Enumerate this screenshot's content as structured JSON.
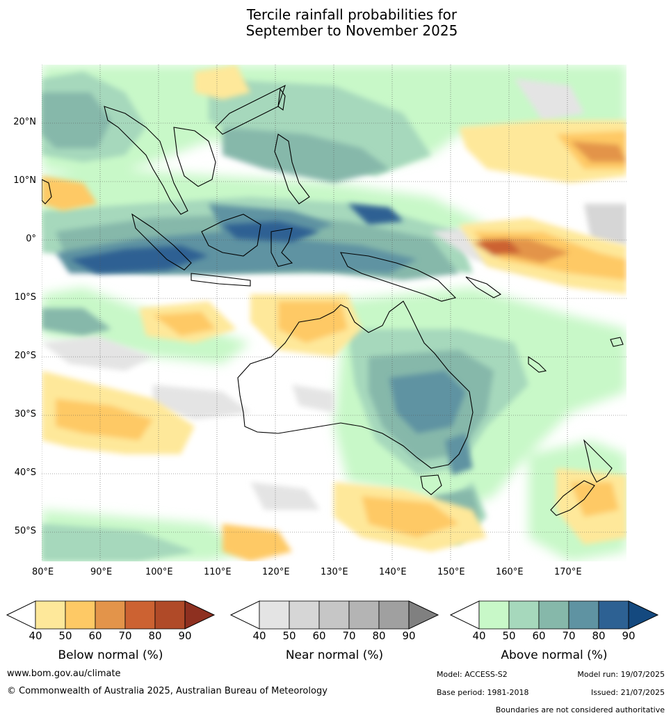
{
  "title_line1": "Tercile rainfall probabilities for",
  "title_line2": "September to November 2025",
  "map": {
    "lon_labels": [
      "80°E",
      "90°E",
      "100°E",
      "110°E",
      "120°E",
      "130°E",
      "140°E",
      "150°E",
      "160°E",
      "170°E"
    ],
    "lat_labels": [
      "20°N",
      "10°N",
      "0°",
      "10°S",
      "20°S",
      "30°S",
      "40°S",
      "50°S"
    ],
    "regions": {
      "north_pacific_below": "Below normal (%)",
      "equatorial_pacific_below": "Below normal (%)",
      "maritime_continent_above": "Above normal (%)",
      "australia_above": "Above normal (%)",
      "nw_australia_below": "Below normal (%)"
    }
  },
  "colorbars": [
    {
      "title": "Below normal (%)",
      "ticks": [
        "40",
        "50",
        "60",
        "70",
        "80",
        "90"
      ],
      "colors": [
        "#fee89a",
        "#fec965",
        "#e3944a",
        "#cc6232",
        "#b04a28",
        "#8e3020"
      ]
    },
    {
      "title": "Near normal (%)",
      "ticks": [
        "40",
        "50",
        "60",
        "70",
        "80",
        "90"
      ],
      "colors": [
        "#e4e4e4",
        "#d6d6d6",
        "#c6c6c6",
        "#b4b4b4",
        "#a0a0a0",
        "#808080"
      ]
    },
    {
      "title": "Above normal (%)",
      "ticks": [
        "40",
        "50",
        "60",
        "70",
        "80",
        "90"
      ],
      "colors": [
        "#c8f8c8",
        "#a6d8bc",
        "#86b8aa",
        "#5f93a2",
        "#2d6193",
        "#14497f"
      ]
    }
  ],
  "footer": {
    "website": "www.bom.gov.au/climate",
    "copyright": "© Commonwealth of Australia 2025, Australian Bureau of Meteorology",
    "model": "Model: ACCESS-S2",
    "model_run": "Model run: 19/07/2025",
    "base_period": "Base period: 1981-2018",
    "issued": "Issued: 21/07/2025",
    "disclaimer": "Boundaries are not considered authoritative"
  }
}
